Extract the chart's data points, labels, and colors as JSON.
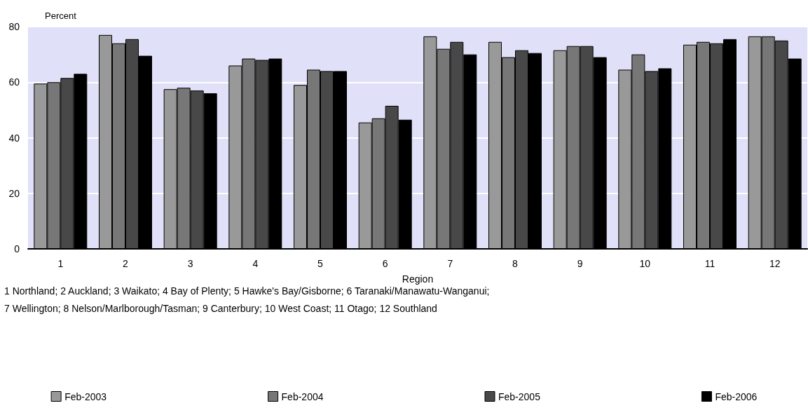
{
  "chart_data": {
    "type": "bar",
    "xlabel": "Region",
    "ylabel": "Percent",
    "categories": [
      "1",
      "2",
      "3",
      "4",
      "5",
      "6",
      "7",
      "8",
      "9",
      "10",
      "11",
      "12"
    ],
    "series": [
      {
        "name": "Feb-2003",
        "color": "#999999",
        "values": [
          59.5,
          77,
          57.5,
          66,
          59,
          45.5,
          76.5,
          74.5,
          71.5,
          64.5,
          73.5,
          76.5
        ]
      },
      {
        "name": "Feb-2004",
        "color": "#777777",
        "values": [
          60,
          74,
          58,
          68.5,
          64.5,
          47,
          72,
          69,
          73,
          70,
          74.5,
          76.5
        ]
      },
      {
        "name": "Feb-2005",
        "color": "#484848",
        "values": [
          61.5,
          75.5,
          57,
          68,
          64,
          51.5,
          74.5,
          71.5,
          73,
          64,
          74,
          75
        ]
      },
      {
        "name": "Feb-2006",
        "color": "#000000",
        "values": [
          63,
          69.5,
          56,
          68.5,
          64,
          46.5,
          70,
          70.5,
          69,
          65,
          75.5,
          68.5
        ]
      }
    ],
    "ylim": [
      0,
      80
    ],
    "yticks": [
      0,
      20,
      40,
      60,
      80
    ],
    "grid": "y",
    "legend": "bottom",
    "annotations": [
      "1 Northland; 2 Auckland; 3 Waikato; 4 Bay of Plenty; 5 Hawke's Bay/Gisborne; 6 Taranaki/Manawatu-Wanganui;",
      "7 Wellington; 8 Nelson/Marlborough/Tasman; 9 Canterbury; 10 West Coast; 11 Otago; 12 Southland"
    ]
  }
}
